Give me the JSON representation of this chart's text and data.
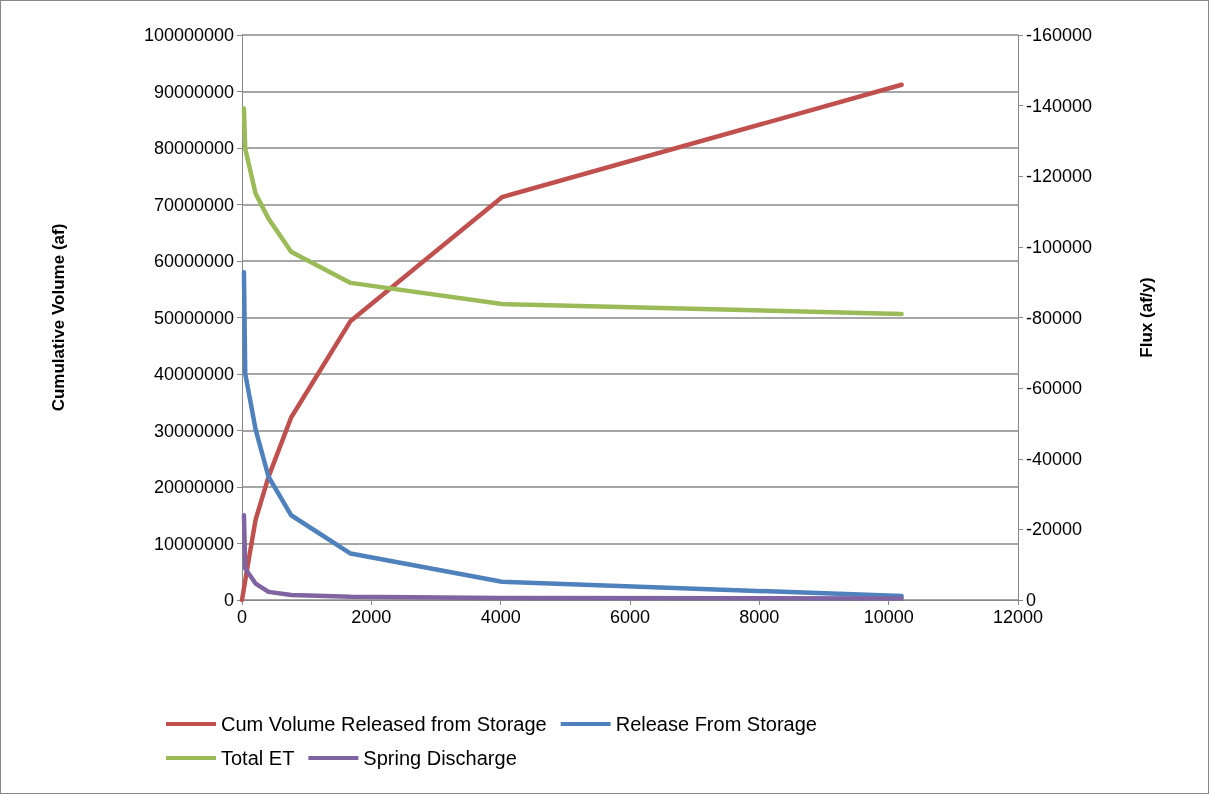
{
  "chart_data": {
    "type": "line",
    "xlabel": null,
    "ylabel": "Cumulative Volume (af)",
    "y2label": "Flux (af/y)",
    "xlim": [
      0,
      12000
    ],
    "xticks": [
      0,
      2000,
      4000,
      6000,
      8000,
      10000,
      12000
    ],
    "ylim": [
      0,
      100000000
    ],
    "yticks": [
      0,
      10000000,
      20000000,
      30000000,
      40000000,
      50000000,
      60000000,
      70000000,
      80000000,
      90000000,
      100000000
    ],
    "y2lim": [
      0,
      -160000
    ],
    "y2ticks": [
      0,
      -20000,
      -40000,
      -60000,
      -80000,
      -100000,
      -120000,
      -140000,
      -160000
    ],
    "grid": "y",
    "legend": "bottom",
    "marker": "none",
    "line_style": "solid",
    "series": [
      {
        "name": "Cum Volume Released from Storage",
        "color": "#c0504d",
        "x": [
          0,
          100,
          210,
          410,
          760,
          1680,
          4020,
          10200
        ],
        "values": [
          0,
          6900000,
          14200000,
          21800000,
          32300000,
          49400000,
          71300000,
          91200000
        ]
      },
      {
        "name": "Release From Storage",
        "color": "#4f81bd",
        "axis": "y2",
        "x": [
          30,
          50,
          210,
          410,
          760,
          1680,
          4020,
          10200
        ],
        "values": [
          -92800,
          -64100,
          -48300,
          -34900,
          -24000,
          -13150,
          -5160,
          -1100
        ]
      },
      {
        "name": "Total ET",
        "color": "#9bbb59",
        "axis": "y2",
        "x": [
          30,
          50,
          210,
          410,
          760,
          1680,
          4020,
          10200
        ],
        "values": [
          -139200,
          -127800,
          -115100,
          -108000,
          -98600,
          -89800,
          -83800,
          -81000
        ]
      },
      {
        "name": "Spring Discharge",
        "color": "#8064a2",
        "axis": "y2",
        "x": [
          30,
          50,
          210,
          410,
          760,
          1680,
          4020,
          10200
        ],
        "values": [
          -24000,
          -8900,
          -4650,
          -2300,
          -1400,
          -900,
          -600,
          -400
        ]
      }
    ]
  }
}
